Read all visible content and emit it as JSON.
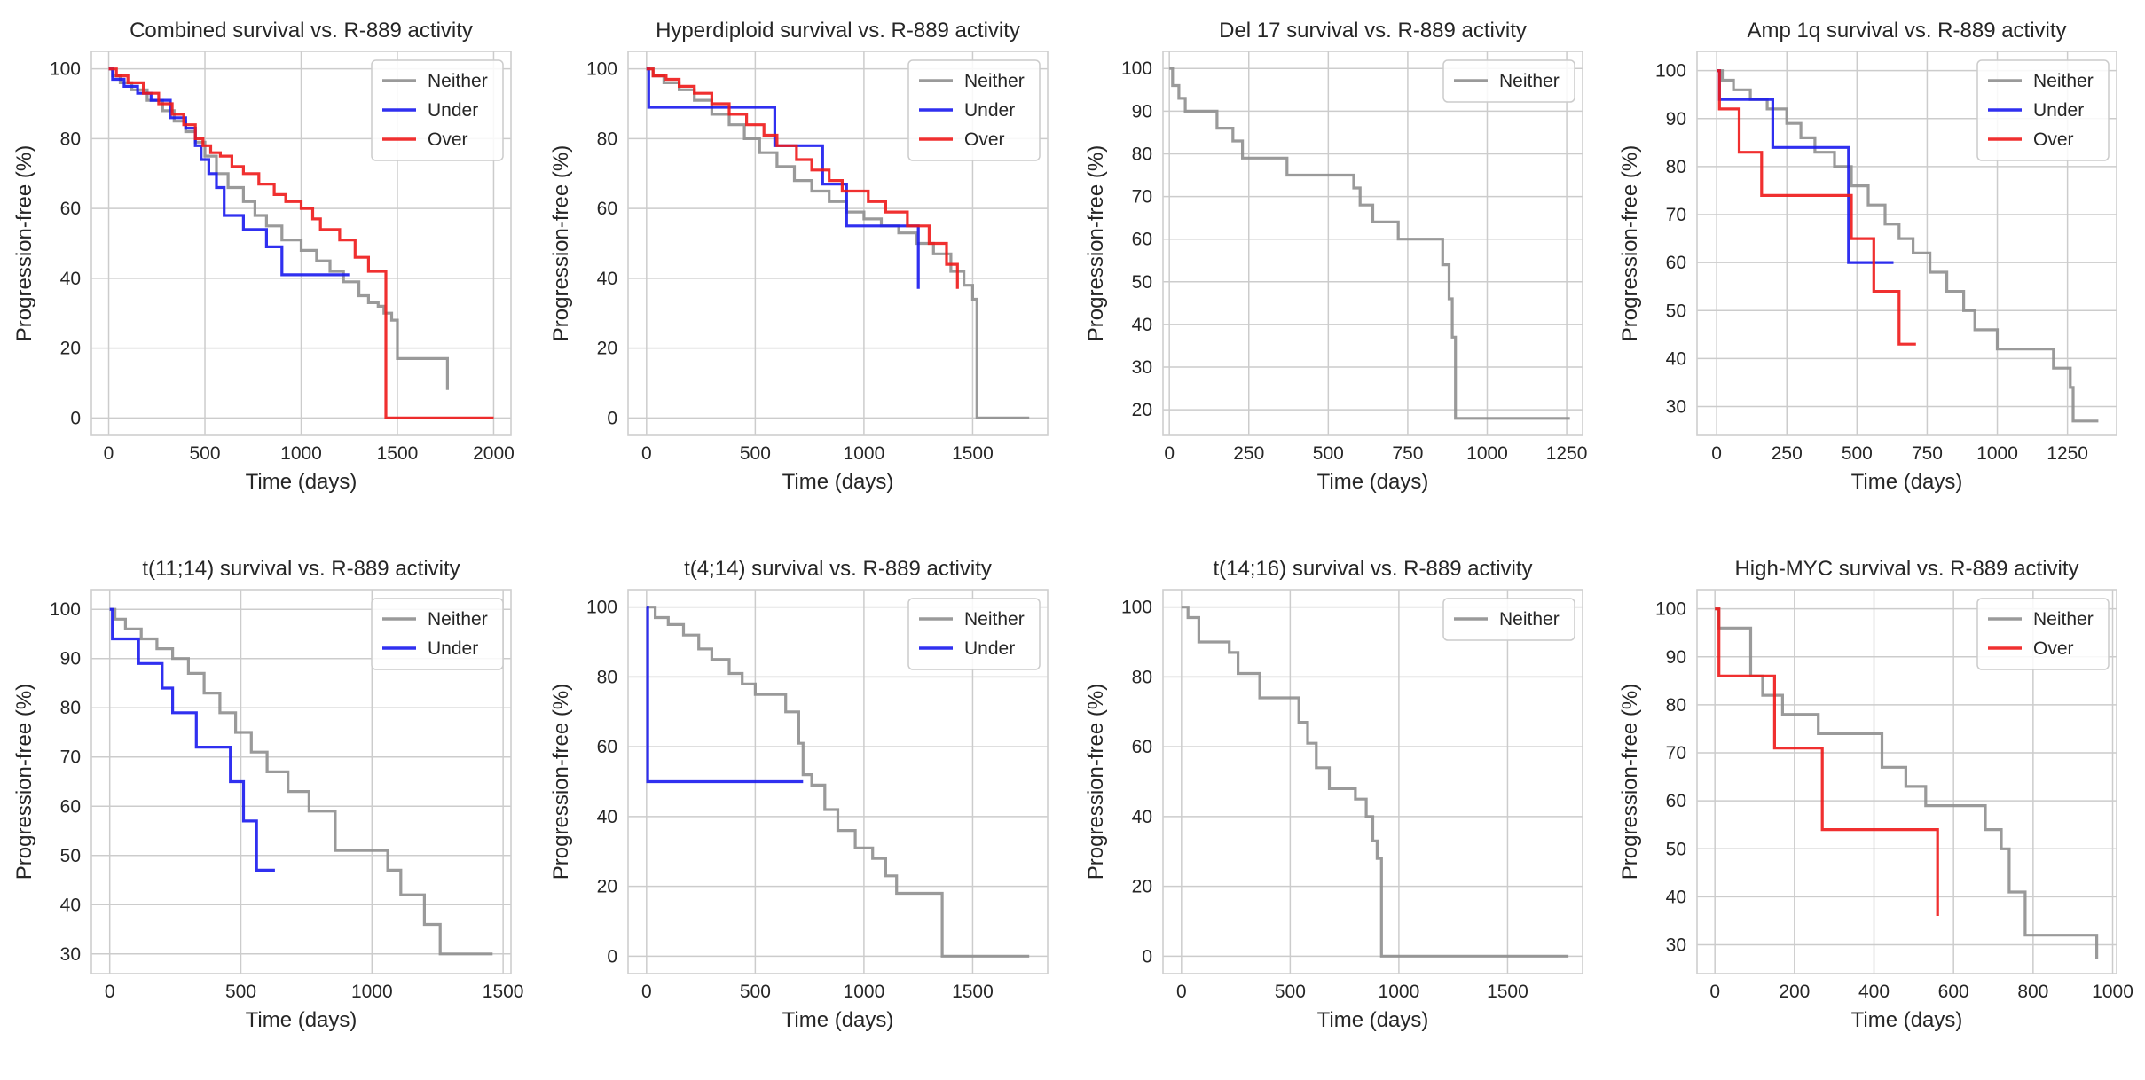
{
  "colors": {
    "Neither": "#8f8f8f",
    "Under": "#1a1aee",
    "Over": "#ee1a1a"
  },
  "chart_data": [
    {
      "type": "line",
      "step": true,
      "title": "Combined survival vs. R-889 activity",
      "xlabel": "Time (days)",
      "ylabel": "Progression-free (%)",
      "xlim": [
        -90,
        2090
      ],
      "ylim": [
        -5,
        105
      ],
      "xticks": [
        0,
        500,
        1000,
        1500,
        2000
      ],
      "xticklabels": [
        "0",
        "500",
        "1000",
        "1500",
        "2000"
      ],
      "yticks": [
        0,
        20,
        40,
        60,
        80,
        100
      ],
      "yticklabels": [
        "0",
        "20",
        "40",
        "60",
        "80",
        "100"
      ],
      "series": [
        {
          "name": "Neither",
          "x": [
            0,
            20,
            60,
            120,
            200,
            280,
            340,
            400,
            450,
            500,
            560,
            620,
            700,
            760,
            820,
            900,
            1000,
            1080,
            1150,
            1220,
            1300,
            1350,
            1400,
            1430,
            1470,
            1500,
            1760,
            1760
          ],
          "y": [
            100,
            98,
            96,
            94,
            91,
            88,
            85,
            82,
            79,
            75,
            70,
            66,
            62,
            58,
            55,
            51,
            48,
            45,
            42,
            39,
            35,
            33,
            32,
            30,
            28,
            17,
            17,
            8
          ]
        },
        {
          "name": "Under",
          "x": [
            0,
            20,
            80,
            150,
            220,
            320,
            400,
            450,
            480,
            520,
            560,
            600,
            700,
            820,
            900,
            1250
          ],
          "y": [
            100,
            97,
            95,
            93,
            91,
            86,
            83,
            78,
            74,
            70,
            66,
            58,
            54,
            49,
            41,
            41
          ]
        },
        {
          "name": "Over",
          "x": [
            0,
            40,
            100,
            180,
            260,
            330,
            390,
            450,
            490,
            530,
            580,
            640,
            700,
            780,
            860,
            920,
            1000,
            1060,
            1100,
            1200,
            1280,
            1350,
            1440,
            2000
          ],
          "y": [
            100,
            98,
            96,
            93,
            90,
            87,
            84,
            80,
            78,
            76,
            75,
            72,
            70,
            67,
            64,
            62,
            60,
            57,
            54,
            51,
            46,
            42,
            0,
            0
          ]
        }
      ]
    },
    {
      "type": "line",
      "step": true,
      "title": "Hyperdiploid survival vs. R-889 activity",
      "xlabel": "Time (days)",
      "ylabel": "Progression-free (%)",
      "xlim": [
        -85,
        1845
      ],
      "ylim": [
        -5,
        105
      ],
      "xticks": [
        0,
        500,
        1000,
        1500
      ],
      "xticklabels": [
        "0",
        "500",
        "1000",
        "1500"
      ],
      "yticks": [
        0,
        20,
        40,
        60,
        80,
        100
      ],
      "yticklabels": [
        "0",
        "20",
        "40",
        "60",
        "80",
        "100"
      ],
      "series": [
        {
          "name": "Neither",
          "x": [
            0,
            30,
            80,
            150,
            220,
            300,
            380,
            450,
            520,
            600,
            680,
            760,
            840,
            920,
            1000,
            1080,
            1160,
            1240,
            1320,
            1400,
            1460,
            1500,
            1520,
            1760
          ],
          "y": [
            100,
            98,
            96,
            94,
            91,
            87,
            84,
            80,
            76,
            72,
            68,
            65,
            62,
            59,
            57,
            55,
            53,
            50,
            47,
            42,
            38,
            34,
            0,
            0
          ]
        },
        {
          "name": "Under",
          "x": [
            0,
            10,
            520,
            590,
            810,
            920,
            1250
          ],
          "y": [
            100,
            89,
            89,
            78,
            67,
            55,
            37
          ]
        },
        {
          "name": "Over",
          "x": [
            0,
            30,
            90,
            150,
            220,
            300,
            380,
            460,
            540,
            600,
            690,
            760,
            840,
            900,
            1020,
            1100,
            1200,
            1300,
            1380,
            1430
          ],
          "y": [
            100,
            98,
            97,
            95,
            93,
            90,
            87,
            84,
            81,
            78,
            74,
            71,
            68,
            65,
            62,
            59,
            55,
            50,
            44,
            37
          ]
        }
      ]
    },
    {
      "type": "line",
      "step": true,
      "title": "Del 17 survival vs. R-889 activity",
      "xlabel": "Time (days)",
      "ylabel": "Progression-free (%)",
      "xlim": [
        -20,
        1300
      ],
      "ylim": [
        14,
        104
      ],
      "xticks": [
        0,
        250,
        500,
        750,
        1000,
        1250
      ],
      "xticklabels": [
        "0",
        "250",
        "500",
        "750",
        "1000",
        "1250"
      ],
      "yticks": [
        20,
        30,
        40,
        50,
        60,
        70,
        80,
        90,
        100
      ],
      "yticklabels": [
        "20",
        "30",
        "40",
        "50",
        "60",
        "70",
        "80",
        "90",
        "100"
      ],
      "series": [
        {
          "name": "Neither",
          "x": [
            0,
            10,
            30,
            50,
            150,
            200,
            230,
            340,
            370,
            580,
            600,
            640,
            720,
            860,
            880,
            890,
            900,
            1260
          ],
          "y": [
            100,
            96,
            93,
            90,
            86,
            83,
            79,
            79,
            75,
            72,
            68,
            64,
            60,
            54,
            46,
            37,
            18,
            18
          ]
        }
      ]
    },
    {
      "type": "line",
      "step": true,
      "title": "Amp 1q survival vs. R-889 activity",
      "xlabel": "Time (days)",
      "ylabel": "Progression-free (%)",
      "xlim": [
        -70,
        1425
      ],
      "ylim": [
        24,
        104
      ],
      "xticks": [
        0,
        250,
        500,
        750,
        1000,
        1250
      ],
      "xticklabels": [
        "0",
        "250",
        "500",
        "750",
        "1000",
        "1250"
      ],
      "yticks": [
        30,
        40,
        50,
        60,
        70,
        80,
        90,
        100
      ],
      "yticklabels": [
        "30",
        "40",
        "50",
        "60",
        "70",
        "80",
        "90",
        "100"
      ],
      "series": [
        {
          "name": "Neither",
          "x": [
            0,
            20,
            60,
            120,
            180,
            250,
            300,
            350,
            420,
            480,
            540,
            600,
            650,
            700,
            760,
            820,
            880,
            920,
            1000,
            1200,
            1260,
            1270,
            1360
          ],
          "y": [
            100,
            98,
            96,
            94,
            92,
            89,
            86,
            83,
            80,
            76,
            72,
            68,
            65,
            62,
            58,
            54,
            50,
            46,
            42,
            38,
            34,
            27,
            27
          ]
        },
        {
          "name": "Under",
          "x": [
            0,
            10,
            160,
            200,
            340,
            470,
            630
          ],
          "y": [
            100,
            94,
            94,
            84,
            84,
            60,
            60
          ]
        },
        {
          "name": "Over",
          "x": [
            0,
            10,
            80,
            160,
            420,
            480,
            560,
            650,
            710
          ],
          "y": [
            100,
            92,
            83,
            74,
            74,
            65,
            54,
            43,
            43
          ]
        }
      ]
    },
    {
      "type": "line",
      "step": true,
      "title": "t(11;14) survival vs. R-889 activity",
      "xlabel": "Time (days)",
      "ylabel": "Progression-free (%)",
      "xlim": [
        -70,
        1530
      ],
      "ylim": [
        26,
        104
      ],
      "xticks": [
        0,
        500,
        1000,
        1500
      ],
      "xticklabels": [
        "0",
        "500",
        "1000",
        "1500"
      ],
      "yticks": [
        30,
        40,
        50,
        60,
        70,
        80,
        90,
        100
      ],
      "yticklabels": [
        "30",
        "40",
        "50",
        "60",
        "70",
        "80",
        "90",
        "100"
      ],
      "series": [
        {
          "name": "Neither",
          "x": [
            0,
            20,
            60,
            120,
            180,
            240,
            300,
            360,
            420,
            480,
            540,
            600,
            680,
            760,
            860,
            1060,
            1110,
            1200,
            1260,
            1460
          ],
          "y": [
            100,
            98,
            96,
            94,
            92,
            90,
            87,
            83,
            79,
            75,
            71,
            67,
            63,
            59,
            51,
            47,
            42,
            36,
            30,
            30
          ]
        },
        {
          "name": "Under",
          "x": [
            0,
            10,
            60,
            110,
            200,
            240,
            330,
            460,
            510,
            560,
            630
          ],
          "y": [
            100,
            94,
            94,
            89,
            84,
            79,
            72,
            65,
            57,
            47,
            47
          ]
        }
      ]
    },
    {
      "type": "line",
      "step": true,
      "title": "t(4;14) survival vs. R-889 activity",
      "xlabel": "Time (days)",
      "ylabel": "Progression-free (%)",
      "xlim": [
        -85,
        1845
      ],
      "ylim": [
        -5,
        105
      ],
      "xticks": [
        0,
        500,
        1000,
        1500
      ],
      "xticklabels": [
        "0",
        "500",
        "1000",
        "1500"
      ],
      "yticks": [
        0,
        20,
        40,
        60,
        80,
        100
      ],
      "yticklabels": [
        "0",
        "20",
        "40",
        "60",
        "80",
        "100"
      ],
      "series": [
        {
          "name": "Neither",
          "x": [
            0,
            40,
            100,
            170,
            240,
            300,
            380,
            440,
            500,
            560,
            640,
            700,
            720,
            760,
            820,
            880,
            960,
            1040,
            1100,
            1150,
            1360,
            1760
          ],
          "y": [
            100,
            97,
            95,
            92,
            88,
            85,
            81,
            78,
            75,
            75,
            70,
            61,
            52,
            49,
            42,
            36,
            31,
            28,
            23,
            18,
            0,
            0
          ]
        },
        {
          "name": "Under",
          "x": [
            0,
            5,
            720
          ],
          "y": [
            100,
            50,
            50
          ]
        }
      ]
    },
    {
      "type": "line",
      "step": true,
      "title": "t(14;16) survival vs. R-889 activity",
      "xlabel": "Time (days)",
      "ylabel": "Progression-free (%)",
      "xlim": [
        -85,
        1845
      ],
      "ylim": [
        -5,
        105
      ],
      "xticks": [
        0,
        500,
        1000,
        1500
      ],
      "xticklabels": [
        "0",
        "500",
        "1000",
        "1500"
      ],
      "yticks": [
        0,
        20,
        40,
        60,
        80,
        100
      ],
      "yticklabels": [
        "0",
        "20",
        "40",
        "60",
        "80",
        "100"
      ],
      "series": [
        {
          "name": "Neither",
          "x": [
            0,
            30,
            80,
            220,
            260,
            360,
            540,
            580,
            620,
            680,
            800,
            850,
            880,
            900,
            920,
            1780
          ],
          "y": [
            100,
            97,
            90,
            87,
            81,
            74,
            67,
            61,
            54,
            48,
            45,
            40,
            33,
            28,
            0,
            0
          ]
        }
      ]
    },
    {
      "type": "line",
      "step": true,
      "title": "High-MYC survival vs. R-889 activity",
      "xlabel": "Time (days)",
      "ylabel": "Progression-free (%)",
      "xlim": [
        -45,
        1010
      ],
      "ylim": [
        24,
        104
      ],
      "xticks": [
        0,
        200,
        400,
        600,
        800,
        1000
      ],
      "xticklabels": [
        "0",
        "200",
        "400",
        "600",
        "800",
        "1000"
      ],
      "yticks": [
        30,
        40,
        50,
        60,
        70,
        80,
        90,
        100
      ],
      "yticklabels": [
        "30",
        "40",
        "50",
        "60",
        "70",
        "80",
        "90",
        "100"
      ],
      "series": [
        {
          "name": "Neither",
          "x": [
            0,
            10,
            90,
            120,
            170,
            260,
            420,
            480,
            530,
            680,
            720,
            740,
            780,
            960
          ],
          "y": [
            100,
            96,
            86,
            82,
            78,
            74,
            67,
            63,
            59,
            54,
            50,
            41,
            32,
            27
          ]
        },
        {
          "name": "Over",
          "x": [
            0,
            10,
            100,
            150,
            270,
            560
          ],
          "y": [
            100,
            86,
            86,
            71,
            54,
            36
          ]
        }
      ]
    }
  ]
}
